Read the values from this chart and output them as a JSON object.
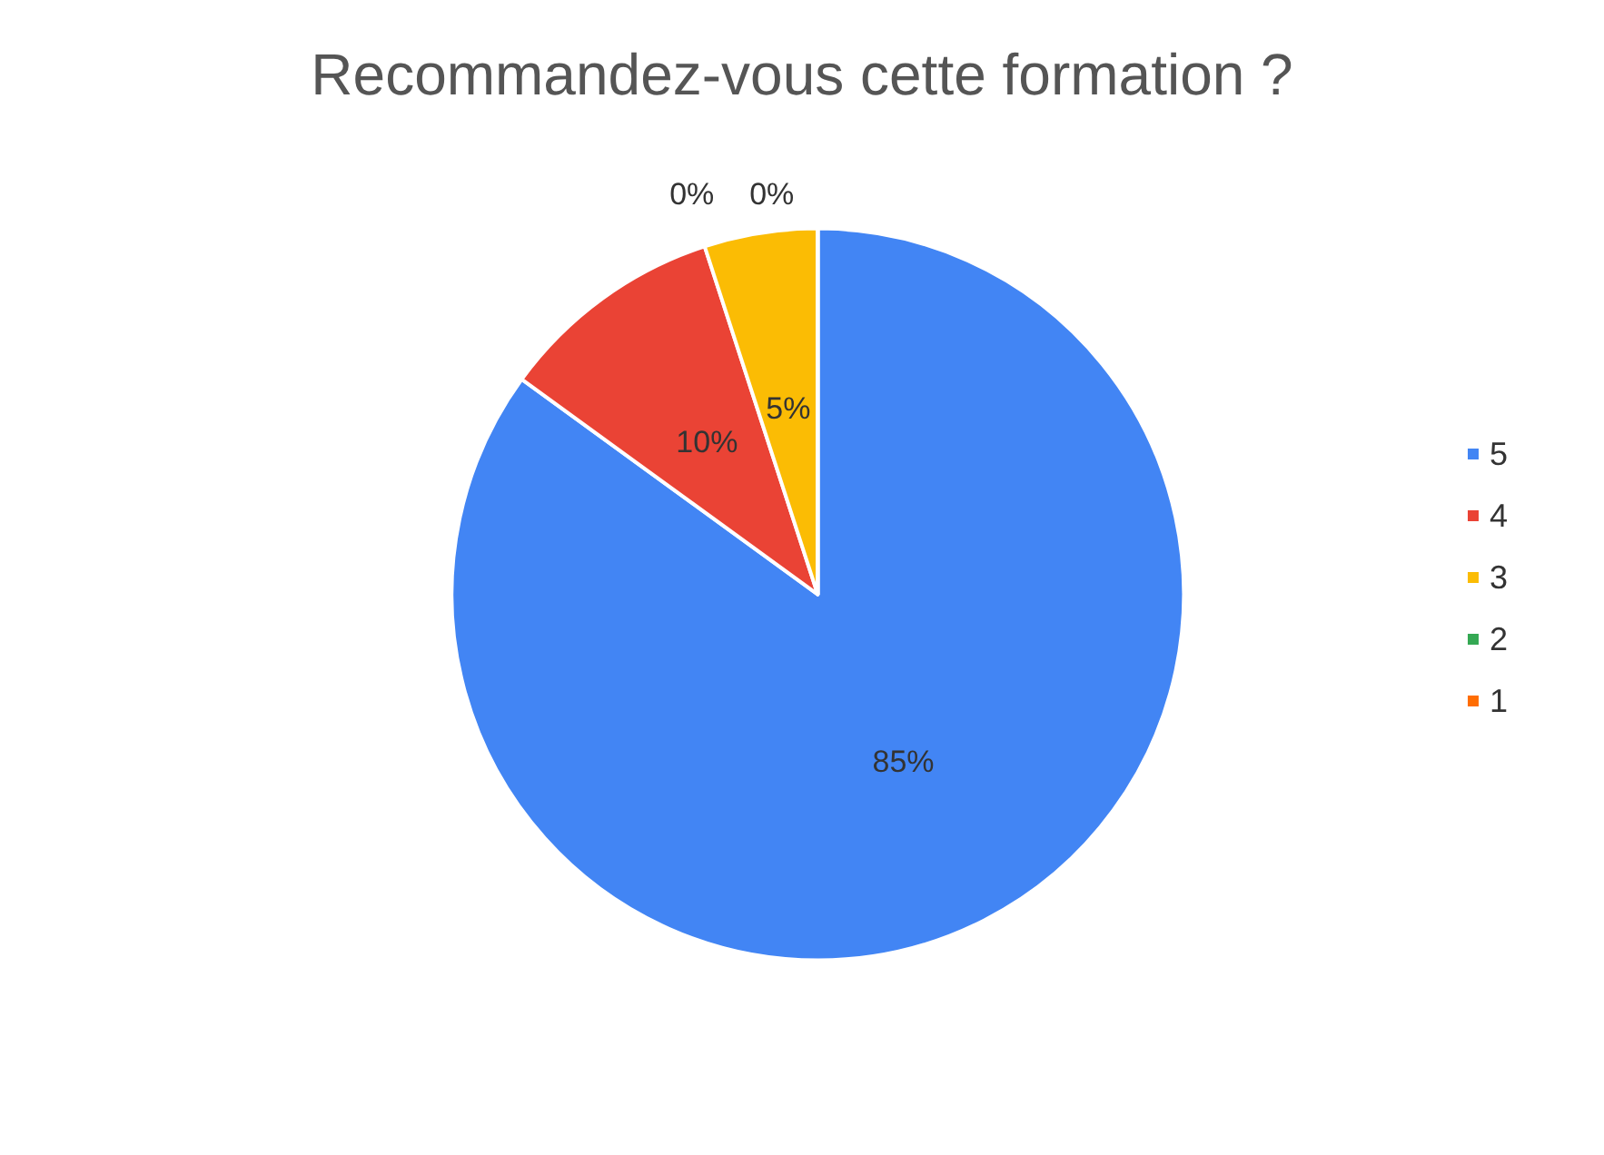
{
  "chart_data": {
    "type": "pie",
    "title": "Recommandez-vous cette formation ?",
    "categories": [
      "5",
      "4",
      "3",
      "2",
      "1"
    ],
    "values": [
      85,
      10,
      5,
      0,
      0
    ],
    "colors": [
      "#4285f4",
      "#ea4335",
      "#fbbc04",
      "#34a853",
      "#ff6d01"
    ],
    "value_labels": [
      "85%",
      "10%",
      "5%",
      "0%",
      "0%"
    ],
    "legend": "right"
  }
}
